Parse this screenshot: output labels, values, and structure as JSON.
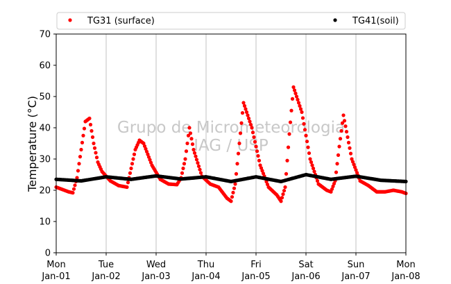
{
  "chart_data": {
    "type": "scatter",
    "title": "",
    "xlabel": "",
    "ylabel": "Temperature (°C)",
    "ylim": [
      0,
      70
    ],
    "yticks": [
      0,
      10,
      20,
      30,
      40,
      50,
      60,
      70
    ],
    "xlim": [
      "2019-01-01",
      "2019-01-08"
    ],
    "grid": "vertical lines at day boundaries",
    "legend_position": "top, above plot",
    "xtick_labels": [
      {
        "day": "Mon",
        "date": "Jan-01"
      },
      {
        "day": "Tue",
        "date": "Jan-02"
      },
      {
        "day": "Wed",
        "date": "Jan-03"
      },
      {
        "day": "Thu",
        "date": "Jan-04"
      },
      {
        "day": "Fri",
        "date": "Jan-05"
      },
      {
        "day": "Sat",
        "date": "Jan-06"
      },
      {
        "day": "Sun",
        "date": "Jan-07"
      },
      {
        "day": "Mon",
        "date": "Jan-08"
      }
    ],
    "watermark": [
      "Grupo de Micrometeorologia",
      "IAG / USP"
    ],
    "series": [
      {
        "name": "TG31 (surface)",
        "color": "#ff0000",
        "x": [
          "01-01 00:00",
          "01-01 06:00",
          "01-01 08:00",
          "01-01 10:00",
          "01-01 12:00",
          "01-01 14:00",
          "01-01 16:00",
          "01-01 18:00",
          "01-01 20:00",
          "01-01 22:00",
          "01-02 02:00",
          "01-02 06:00",
          "01-02 10:00",
          "01-02 12:00",
          "01-02 14:00",
          "01-02 16:00",
          "01-02 18:00",
          "01-02 22:00",
          "01-03 02:00",
          "01-03 06:00",
          "01-03 10:00",
          "01-03 12:00",
          "01-03 14:00",
          "01-03 16:00",
          "01-03 18:00",
          "01-03 22:00",
          "01-04 02:00",
          "01-04 06:00",
          "01-04 10:00",
          "01-04 12:00",
          "01-04 14:00",
          "01-04 16:00",
          "01-04 18:00",
          "01-04 22:00",
          "01-05 02:00",
          "01-05 06:00",
          "01-05 10:00",
          "01-05 12:00",
          "01-05 14:00",
          "01-05 16:00",
          "01-05 18:00",
          "01-05 22:00",
          "01-06 02:00",
          "01-06 06:00",
          "01-06 10:00",
          "01-06 12:00",
          "01-06 14:00",
          "01-06 16:00",
          "01-06 18:00",
          "01-06 22:00",
          "01-07 02:00",
          "01-07 06:00",
          "01-07 10:00",
          "01-07 14:00",
          "01-07 18:00",
          "01-07 22:00",
          "01-08 00:00"
        ],
        "y": [
          21.0,
          19.5,
          19.2,
          24.0,
          33.0,
          42.0,
          43.0,
          35.0,
          29.0,
          26.0,
          23.0,
          21.5,
          21.0,
          27.0,
          33.0,
          36.0,
          35.0,
          28.0,
          23.5,
          22.0,
          21.8,
          24.0,
          30.0,
          40.0,
          33.0,
          24.5,
          22.0,
          21.0,
          17.5,
          16.5,
          22.0,
          35.0,
          48.0,
          40.0,
          28.0,
          21.0,
          18.5,
          16.5,
          21.0,
          38.0,
          53.0,
          45.0,
          30.0,
          22.0,
          20.0,
          19.5,
          23.0,
          34.0,
          44.0,
          30.0,
          23.0,
          21.5,
          19.5,
          19.5,
          20.0,
          19.5,
          19.0
        ]
      },
      {
        "name": "TG41(soil)",
        "color": "#000000",
        "x": [
          "01-01 00:00",
          "01-01 12:00",
          "01-02 00:00",
          "01-02 12:00",
          "01-03 00:00",
          "01-03 12:00",
          "01-04 00:00",
          "01-04 12:00",
          "01-05 00:00",
          "01-05 12:00",
          "01-06 00:00",
          "01-06 12:00",
          "01-07 00:00",
          "01-07 12:00",
          "01-08 00:00"
        ],
        "y": [
          23.5,
          23.0,
          24.3,
          23.5,
          24.6,
          23.6,
          24.3,
          22.8,
          24.3,
          22.8,
          25.0,
          23.5,
          24.5,
          23.2,
          22.8
        ]
      }
    ]
  }
}
